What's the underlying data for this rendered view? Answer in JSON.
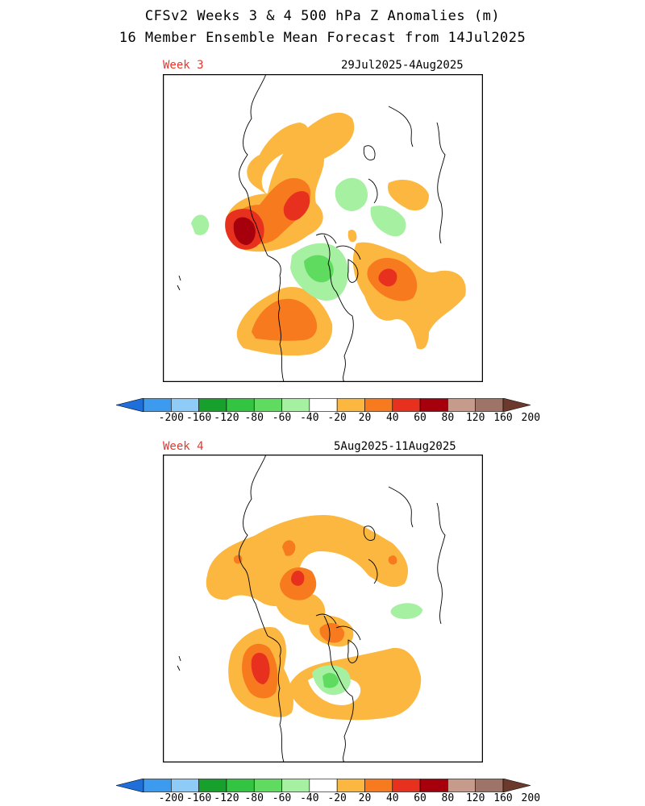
{
  "title": "CFSv2 Weeks 3 & 4 500 hPa Z Anomalies (m)",
  "subtitle": "16 Member Ensemble Mean Forecast from 14Jul2025",
  "panels": [
    {
      "label": "Week 3",
      "date_range": "29Jul2025-4Aug2025"
    },
    {
      "label": "Week 4",
      "date_range": "5Aug2025-11Aug2025"
    }
  ],
  "colorbar": {
    "ticks": [
      "-200",
      "-160",
      "-120",
      "-80",
      "-60",
      "-40",
      "-20",
      "20",
      "40",
      "60",
      "80",
      "120",
      "160",
      "200"
    ],
    "colors": [
      "#1e6fd9",
      "#3c9bef",
      "#8ecbf7",
      "#17a02b",
      "#33c441",
      "#5fdc5f",
      "#a5f0a1",
      "#ffffff",
      "#fbb73f",
      "#f77a1f",
      "#e7311e",
      "#a6000c",
      "#c79b8c",
      "#9f7468",
      "#6b3a2c"
    ]
  }
}
